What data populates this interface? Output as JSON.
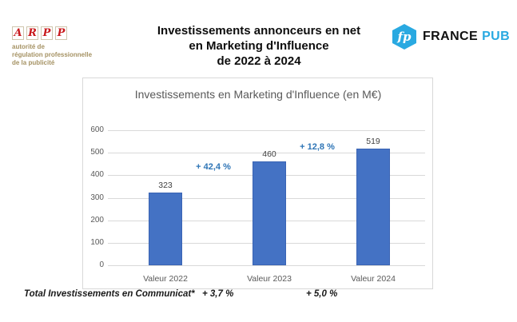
{
  "header": {
    "arpp": {
      "letters": [
        "A",
        "R",
        "P",
        "P"
      ],
      "subtitle_lines": [
        "autorité de",
        "régulation professionnelle",
        "de la publicité"
      ],
      "letter_color": "#C8191C",
      "subtitle_color": "#A59263"
    },
    "title_lines": [
      "Investissements annonceurs en net",
      "en Marketing d'Influence",
      "de 2022 à 2024"
    ],
    "francepub": {
      "monogram": "fp",
      "name_black": "FRANCE",
      "name_blue": "PUB",
      "brand_blue": "#29A9E1"
    }
  },
  "chart_data": {
    "type": "bar",
    "title": "Investissements en Marketing d'Influence (en M€)",
    "categories": [
      "Valeur 2022",
      "Valeur 2023",
      "Valeur 2024"
    ],
    "values": [
      323,
      460,
      519
    ],
    "value_labels": [
      "323",
      "460",
      "519"
    ],
    "growth_annotations": [
      {
        "label": "+ 42,4 %",
        "between": [
          "Valeur 2022",
          "Valeur 2023"
        ]
      },
      {
        "label": "+ 12,8 %",
        "between": [
          "Valeur 2023",
          "Valeur 2024"
        ]
      }
    ],
    "y_ticks": [
      0,
      100,
      200,
      300,
      400,
      500,
      600
    ],
    "ylim": [
      0,
      600
    ],
    "xlabel": "",
    "ylabel": "",
    "grid": true,
    "legend": false,
    "bar_color": "#4472C4",
    "annotation_color": "#2E75B6"
  },
  "footer": {
    "label": "Total Investissements en Communicat*",
    "growth_2023": "+ 3,7 %",
    "growth_2024": "+ 5,0 %"
  }
}
